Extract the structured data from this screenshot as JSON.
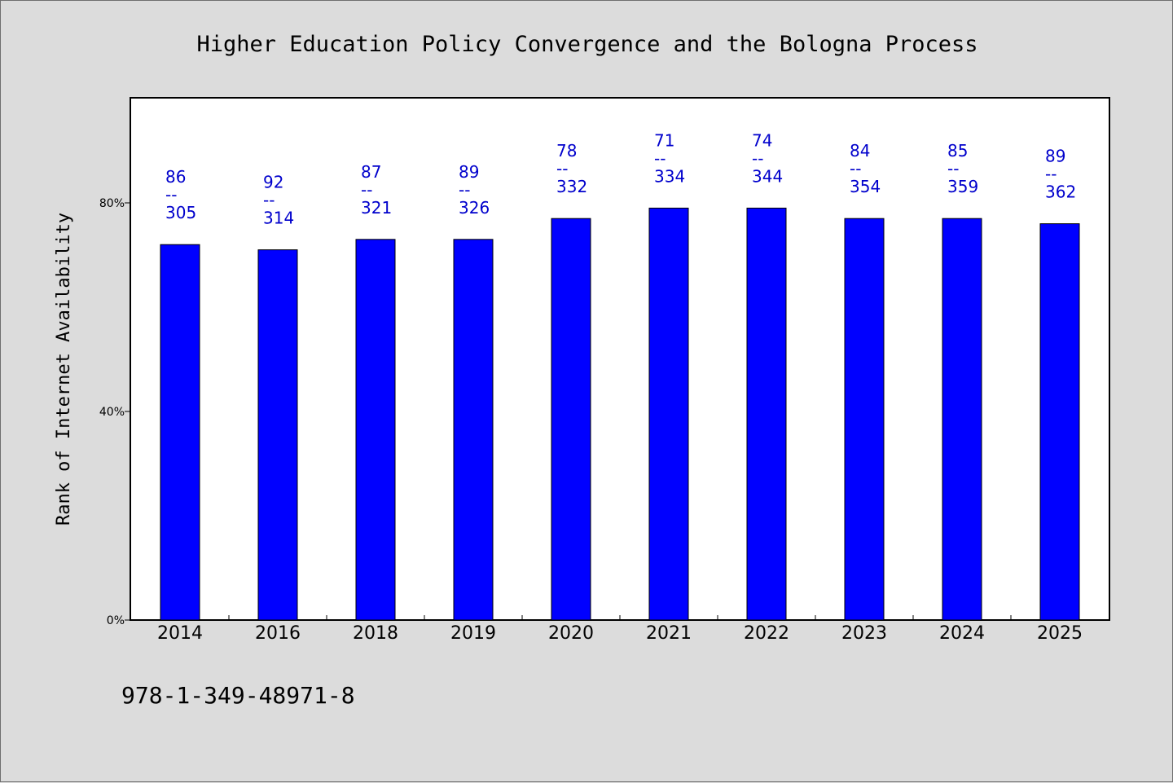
{
  "colors": {
    "page_background": "#dcdcdc",
    "plot_background": "#ffffff",
    "bar_fill": "#0000ff",
    "bar_stroke": "#000000",
    "label_color": "#0000cc",
    "frame": "#000000"
  },
  "footer": {
    "text": "978-1-349-48971-8"
  },
  "chart_data": {
    "type": "bar",
    "title": "Higher Education Policy Convergence and the Bologna Process",
    "xlabel": "",
    "ylabel": "Rank of Internet Availability",
    "ylim": [
      0,
      100
    ],
    "yticks": [
      0,
      40,
      80
    ],
    "ytick_labels": [
      "0%",
      "40%",
      "80%"
    ],
    "grid": false,
    "legend": "none",
    "categories": [
      "2014",
      "2016",
      "2018",
      "2019",
      "2020",
      "2021",
      "2022",
      "2023",
      "2024",
      "2025"
    ],
    "values": [
      72,
      71,
      73,
      73,
      77,
      79,
      79,
      77,
      77,
      76
    ],
    "data_labels": [
      [
        "86",
        "--",
        "305"
      ],
      [
        "92",
        "--",
        "314"
      ],
      [
        "87",
        "--",
        "321"
      ],
      [
        "89",
        "--",
        "326"
      ],
      [
        "78",
        "--",
        "332"
      ],
      [
        "71",
        "--",
        "334"
      ],
      [
        "74",
        "--",
        "344"
      ],
      [
        "84",
        "--",
        "354"
      ],
      [
        "85",
        "--",
        "359"
      ],
      [
        "89",
        "--",
        "362"
      ]
    ]
  }
}
